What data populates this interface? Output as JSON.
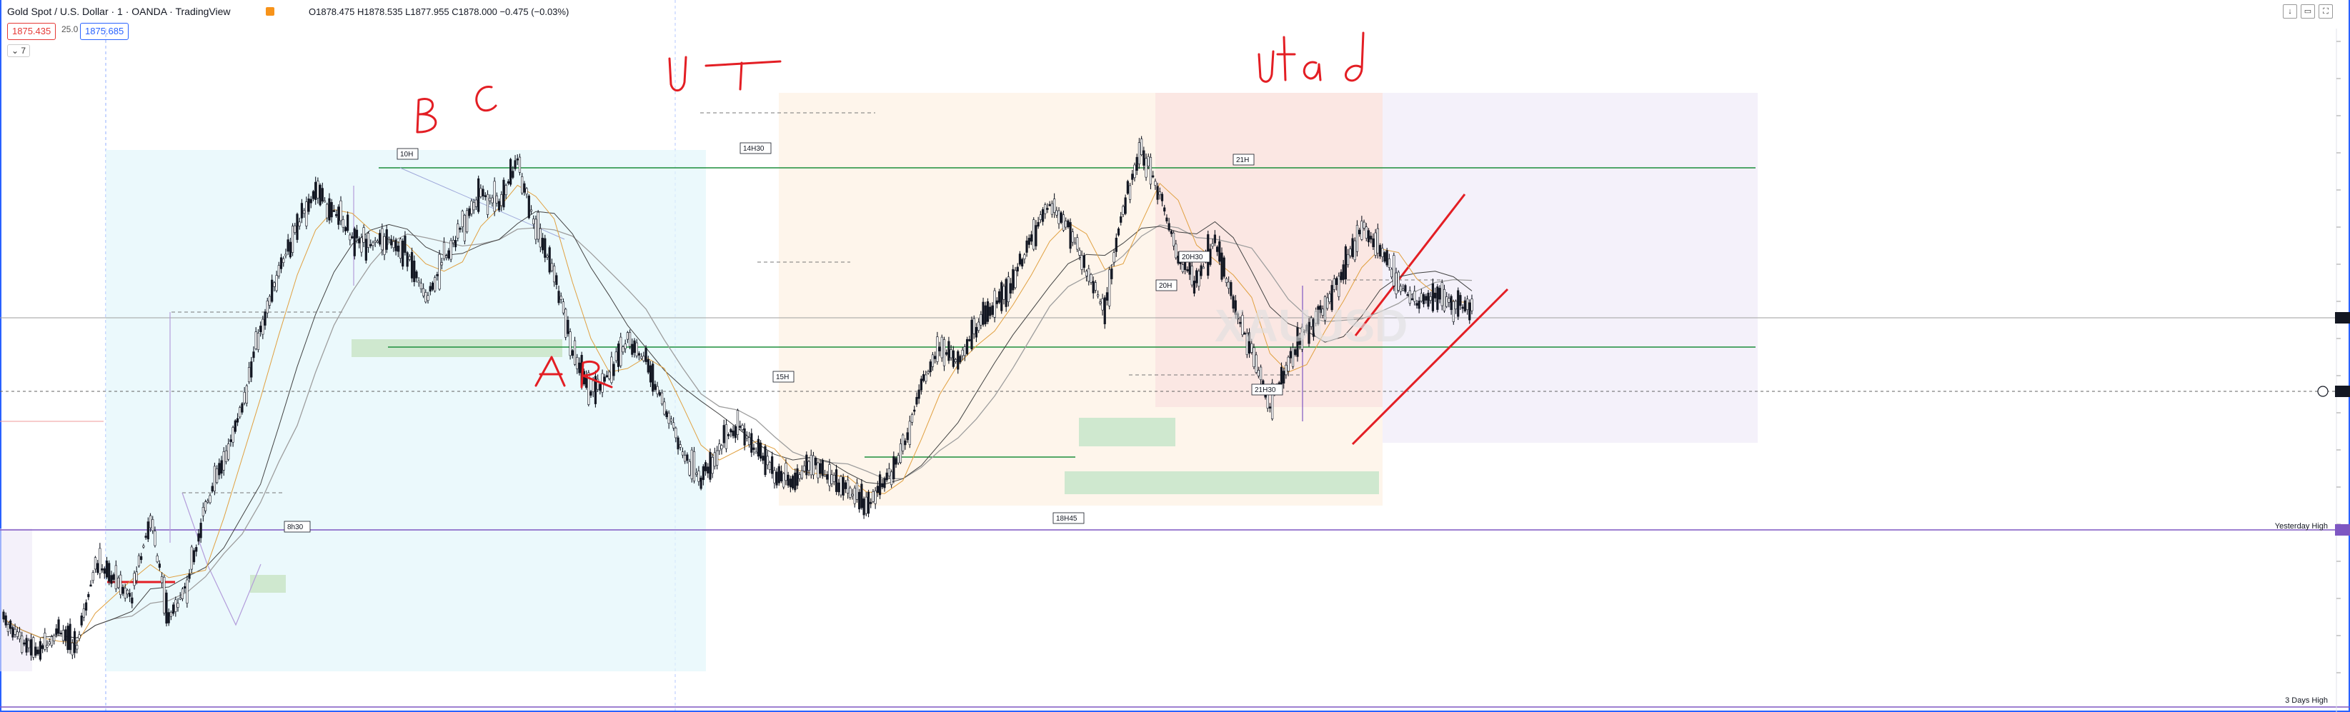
{
  "header": {
    "title": "Gold Spot / U.S. Dollar · 1 · OANDA · TradingView",
    "ohlc": "O1878.475  H1878.535  L1877.955  C1878.000  −0.475 (−0.03%)",
    "bid": "1875.435",
    "spread": "25.0",
    "ask": "1875.685",
    "indicator_count": "7",
    "watermark": "XAUUSD"
  },
  "annotations": {
    "bc": "B  C",
    "ut": "U T",
    "utad": "Utad",
    "ar": "AR"
  },
  "marker_labels": {
    "m1": "10H",
    "m2": "14H30",
    "m3": "15H",
    "m4": "21H",
    "m5": "20H30",
    "m6": "20H",
    "m7": "21H30",
    "m8": "18H45",
    "m9": "8h30"
  },
  "levels": {
    "yesterday_high": "Yesterday High",
    "three_days_high": "3 Days High"
  },
  "colors": {
    "up": "#131722",
    "down": "#131722",
    "accent": "#2962ff",
    "level_green": "#1b8e3a",
    "hand_red": "#e31e24",
    "level_purple": "#7e57c2"
  },
  "chart_data": {
    "type": "line",
    "symbol": "XAUUSD",
    "timeframe": "1",
    "x": [
      0,
      1,
      2,
      3,
      4,
      5,
      6,
      7,
      8,
      9,
      10,
      11,
      12,
      13,
      14,
      15,
      16,
      17,
      18,
      19,
      20,
      21,
      22,
      23,
      24,
      25,
      26,
      27,
      28,
      29,
      30,
      31,
      32,
      33,
      34,
      35,
      36,
      37,
      38,
      39,
      40,
      41,
      42,
      43,
      44,
      45,
      46,
      47,
      48,
      49,
      50,
      51,
      52,
      53,
      54,
      55,
      56,
      57,
      58,
      59,
      60,
      61,
      62,
      63,
      64,
      65,
      66,
      67,
      68,
      69,
      70,
      71,
      72,
      73,
      74,
      75,
      76,
      77,
      78,
      79,
      80
    ],
    "series": [
      {
        "values": [
          0.1,
          0.06,
          0.04,
          0.08,
          0.05,
          0.2,
          0.17,
          0.14,
          0.28,
          0.1,
          0.16,
          0.3,
          0.38,
          0.48,
          0.62,
          0.72,
          0.8,
          0.86,
          0.83,
          0.78,
          0.77,
          0.78,
          0.75,
          0.67,
          0.74,
          0.8,
          0.86,
          0.84,
          0.92,
          0.8,
          0.72,
          0.58,
          0.5,
          0.54,
          0.6,
          0.56,
          0.48,
          0.4,
          0.35,
          0.4,
          0.45,
          0.4,
          0.36,
          0.34,
          0.38,
          0.35,
          0.33,
          0.3,
          0.34,
          0.4,
          0.52,
          0.58,
          0.56,
          0.62,
          0.66,
          0.7,
          0.78,
          0.84,
          0.8,
          0.72,
          0.65,
          0.83,
          0.94,
          0.86,
          0.74,
          0.7,
          0.78,
          0.66,
          0.58,
          0.48,
          0.56,
          0.62,
          0.66,
          0.72,
          0.8,
          0.76,
          0.7,
          0.66,
          0.68,
          0.66,
          0.65
        ]
      }
    ]
  }
}
